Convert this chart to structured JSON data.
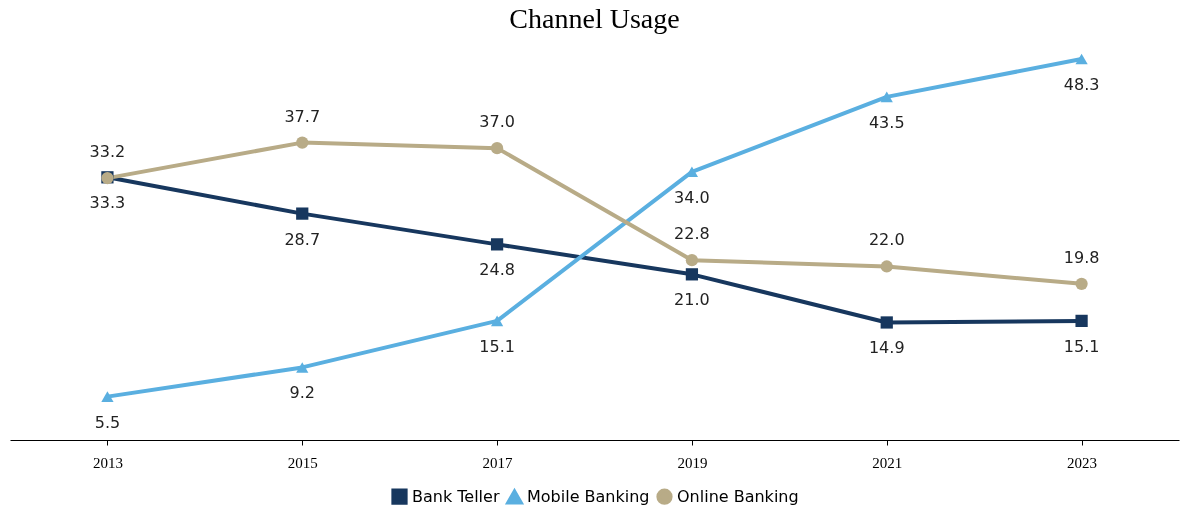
{
  "chart_data": {
    "type": "line",
    "title": "Channel Usage",
    "categories": [
      "2013",
      "2015",
      "2017",
      "2019",
      "2021",
      "2023"
    ],
    "series": [
      {
        "name": "Bank Teller",
        "color": "#17375e",
        "marker": "square",
        "line_style": "solid",
        "values": [
          33.3,
          28.7,
          24.8,
          21.0,
          14.9,
          15.1
        ],
        "value_labels": [
          "33.3",
          "28.7",
          "24.8",
          "21.0",
          "14.9",
          "15.1"
        ]
      },
      {
        "name": "Mobile Banking",
        "color": "#5aafe0",
        "marker": "triangle",
        "line_style": "solid",
        "values": [
          5.5,
          9.2,
          15.1,
          34.0,
          43.5,
          48.3
        ],
        "value_labels": [
          "5.5",
          "9.2",
          "15.1",
          "34.0",
          "43.5",
          "48.3"
        ]
      },
      {
        "name": "Online Banking",
        "color": "#b8ab87",
        "marker": "circle",
        "line_style": "solid",
        "values": [
          33.2,
          37.7,
          37.0,
          22.8,
          22.0,
          19.8
        ],
        "value_labels": [
          "33.2",
          "37.7",
          "37.0",
          "22.8",
          "22.0",
          "19.8"
        ]
      }
    ],
    "legend": "bottom",
    "grid": false
  }
}
